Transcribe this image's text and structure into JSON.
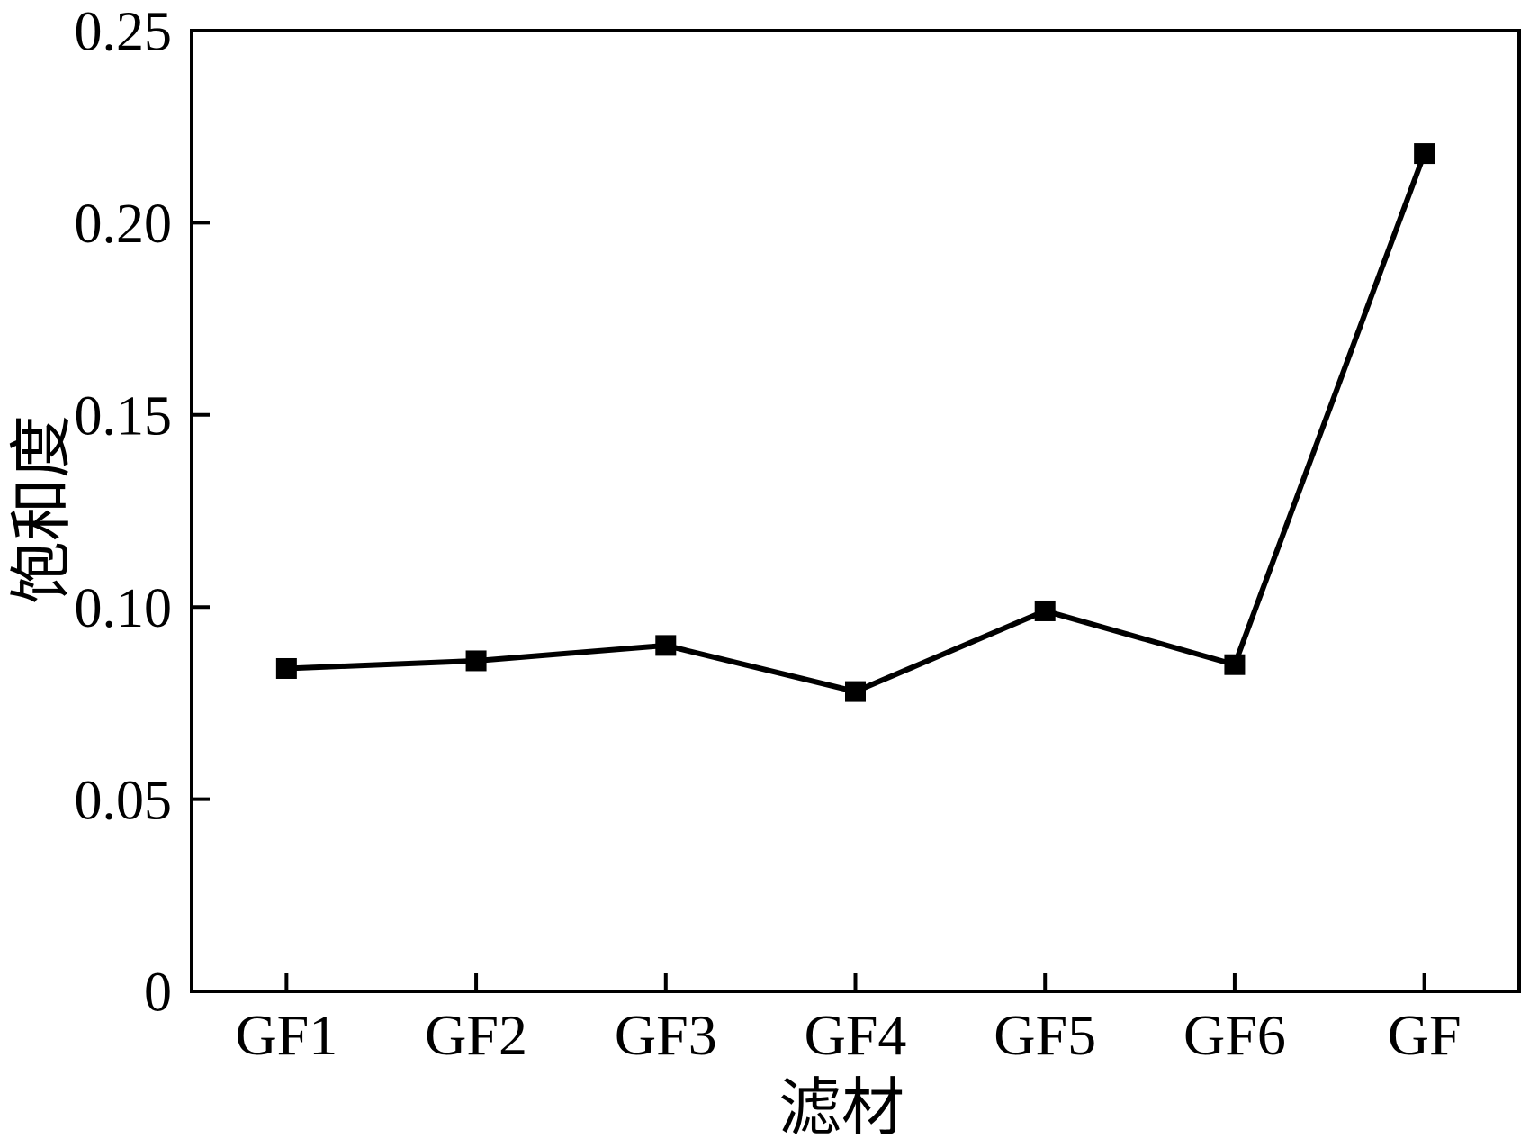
{
  "chart_data": {
    "type": "line",
    "title": "",
    "xlabel": "滤材",
    "ylabel": "饱和度",
    "categories": [
      "GF1",
      "GF2",
      "GF3",
      "GF4",
      "GF5",
      "GF6",
      "GF"
    ],
    "series": [
      {
        "name": "饱和度",
        "values": [
          0.084,
          0.086,
          0.09,
          0.078,
          0.099,
          0.085,
          0.218
        ]
      }
    ],
    "ylim": [
      0,
      0.25
    ],
    "yticks": [
      {
        "value": 0,
        "label": "0"
      },
      {
        "value": 0.05,
        "label": "0.05"
      },
      {
        "value": 0.1,
        "label": "0.10"
      },
      {
        "value": 0.15,
        "label": "0.15"
      },
      {
        "value": 0.2,
        "label": "0.20"
      },
      {
        "value": 0.25,
        "label": "0.25"
      }
    ],
    "grid": false,
    "legend_position": "none",
    "marker": "square",
    "line_color": "#000000",
    "background_color": "#ffffff"
  }
}
